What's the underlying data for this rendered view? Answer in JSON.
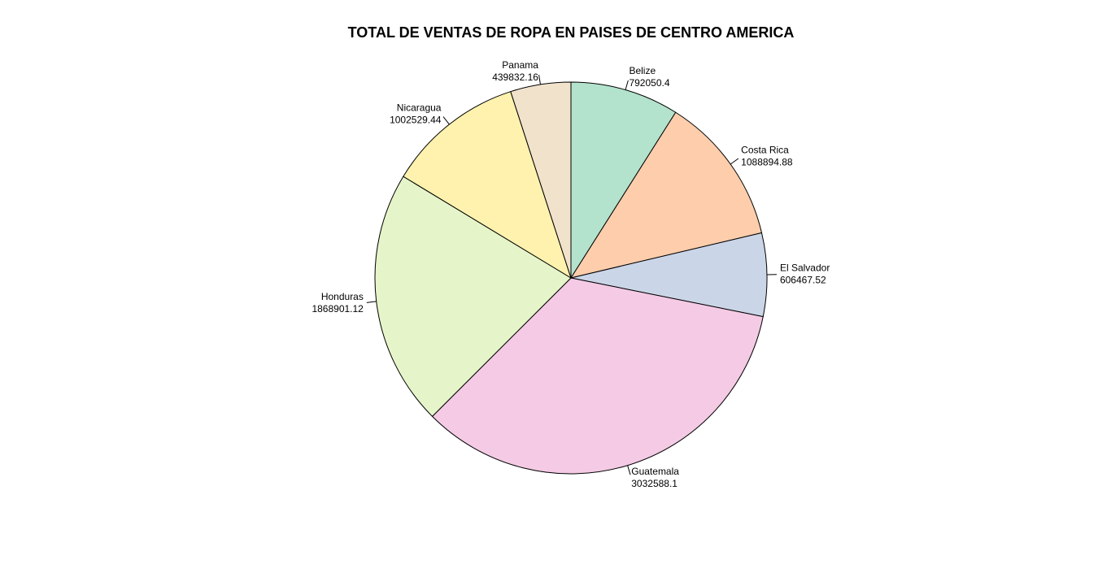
{
  "chart_data": {
    "type": "pie",
    "title": "TOTAL DE VENTAS DE ROPA EN PAISES DE CENTRO AMERICA",
    "start_angle_deg": 90,
    "direction": "clockwise",
    "slices": [
      {
        "label": "Belize",
        "value_label": "792050.4",
        "value": 792050.4,
        "color": "#B3E2CD"
      },
      {
        "label": "Costa Rica",
        "value_label": "1088894.88",
        "value": 1088894.88,
        "color": "#FDCDAC"
      },
      {
        "label": "El Salvador",
        "value_label": "606467.52",
        "value": 606467.52,
        "color": "#CBD5E8"
      },
      {
        "label": "Guatemala",
        "value_label": "3032588.1",
        "value": 3032588.1,
        "color": "#F4CAE4"
      },
      {
        "label": "Honduras",
        "value_label": "1868901.12",
        "value": 1868901.12,
        "color": "#E6F5C9"
      },
      {
        "label": "Nicaragua",
        "value_label": "1002529.44",
        "value": 1002529.44,
        "color": "#FFF2AE"
      },
      {
        "label": "Panama",
        "value_label": "439832.16",
        "value": 439832.16,
        "color": "#F1E2CC"
      }
    ]
  }
}
